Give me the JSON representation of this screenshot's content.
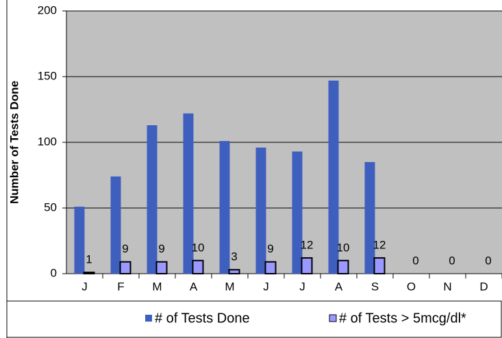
{
  "chart_data": {
    "type": "bar",
    "y_label": "Number of Tests Done",
    "categories": [
      "J",
      "F",
      "M",
      "A",
      "M",
      "J",
      "J",
      "A",
      "S",
      "O",
      "N",
      "D"
    ],
    "series": [
      {
        "name": "# of Tests Done",
        "color": "#3f5fbf",
        "values": [
          51,
          74,
          113,
          122,
          101,
          96,
          93,
          147,
          85,
          null,
          null,
          null
        ]
      },
      {
        "name": "# of Tests > 5mcg/dl*",
        "color": "#9999ff",
        "values": [
          1,
          9,
          9,
          10,
          3,
          9,
          12,
          10,
          12,
          0,
          0,
          0
        ]
      }
    ],
    "data_labels_series": 1,
    "ylim": [
      0,
      200
    ],
    "yticks": [
      0,
      50,
      100,
      150,
      200
    ],
    "grid": true,
    "plot_background": "#c0c0c0",
    "legend": "bottom"
  }
}
